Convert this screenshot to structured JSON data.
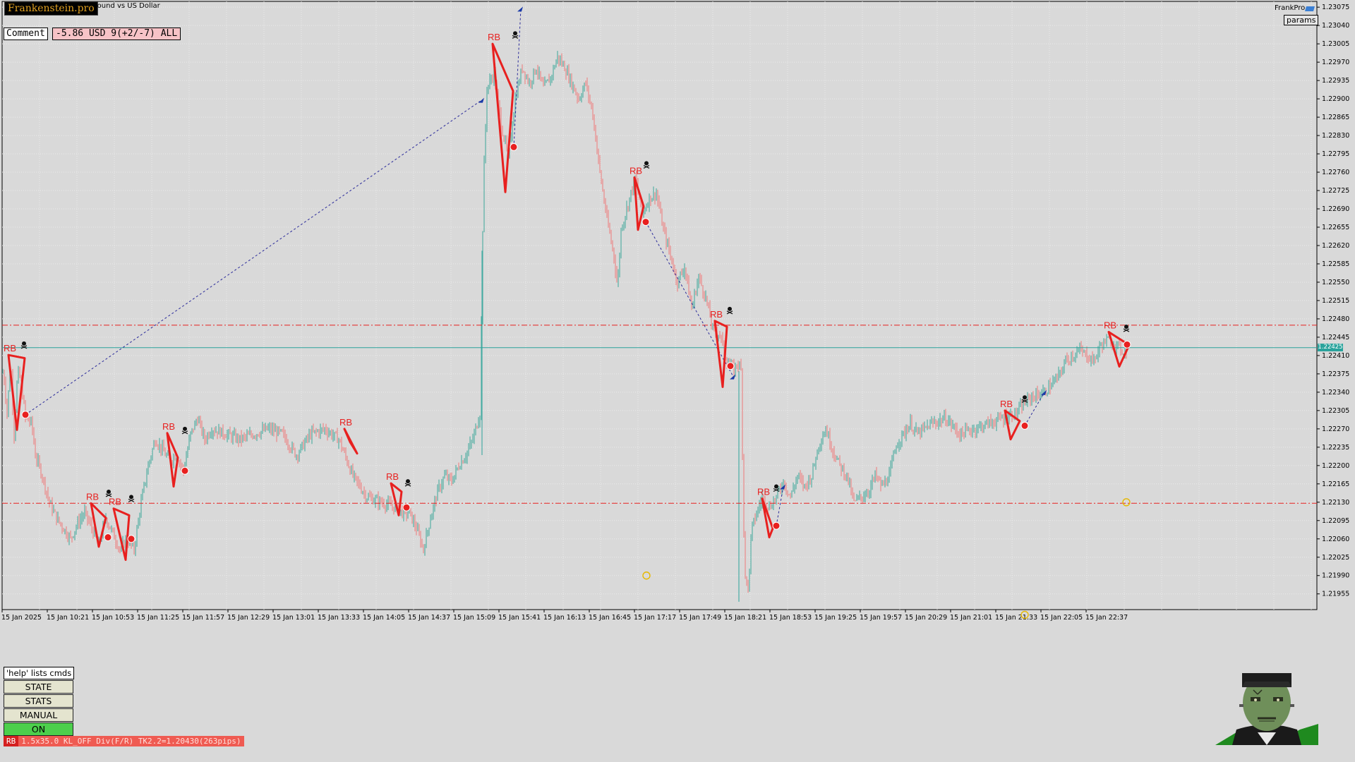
{
  "header": {
    "brand": "Frankenstein.pro",
    "symbol_description": "Pound vs US Dollar",
    "comment_label": "Comment",
    "pnl_text": "-5.86 USD 9(+2/-7) ALL",
    "frankpro_label": "FrankPro",
    "params_label": "params"
  },
  "panel": {
    "help_text": "'help' lists cmds",
    "state_label": "STATE",
    "stats_label": "STATS",
    "manual_label": "MANUAL",
    "on_label": "ON"
  },
  "status_bar": {
    "tag": "RB",
    "text": "1.5x35.0 KL_OFF Div(F/R) TK2.2=1.20430(263pips)"
  },
  "colors": {
    "background": "#d9d9d9",
    "bull_candle": "#5fb3a8",
    "bear_candle": "#e98f8f",
    "signal_red": "#e8201f",
    "bid_line": "#2aa39c",
    "level_line": "#e8201f",
    "trade_dash": "#2a2a9a",
    "on_button": "#4ccf4c"
  },
  "chart_data": {
    "type": "candlestick",
    "title": "",
    "xlabel": "",
    "ylabel": "",
    "ylim": [
      1.21925,
      1.23086
    ],
    "y_ticks": [
      "1.23075",
      "1.23040",
      "1.23005",
      "1.22970",
      "1.22935",
      "1.22900",
      "1.22865",
      "1.22830",
      "1.22795",
      "1.22760",
      "1.22725",
      "1.22690",
      "1.22655",
      "1.22620",
      "1.22585",
      "1.22550",
      "1.22515",
      "1.22480",
      "1.22445",
      "1.22410",
      "1.22375",
      "1.22340",
      "1.22305",
      "1.22270",
      "1.22235",
      "1.22200",
      "1.22165",
      "1.22130",
      "1.22095",
      "1.22060",
      "1.22025",
      "1.21990",
      "1.21955"
    ],
    "x_ticks": [
      "15 Jan 2025",
      "15 Jan 10:21",
      "15 Jan 10:53",
      "15 Jan 11:25",
      "15 Jan 11:57",
      "15 Jan 12:29",
      "15 Jan 13:01",
      "15 Jan 13:33",
      "15 Jan 14:05",
      "15 Jan 14:37",
      "15 Jan 15:09",
      "15 Jan 15:41",
      "15 Jan 16:13",
      "15 Jan 16:45",
      "15 Jan 17:17",
      "15 Jan 17:49",
      "15 Jan 18:21",
      "15 Jan 18:53",
      "15 Jan 19:25",
      "15 Jan 19:57",
      "15 Jan 20:29",
      "15 Jan 21:01",
      "15 Jan 21:33",
      "15 Jan 22:05",
      "15 Jan 22:37"
    ],
    "bid_price": "1.22425",
    "level_lines": [
      1.22468,
      1.22128
    ],
    "price_path": [
      [
        0,
        1.2237
      ],
      [
        5,
        1.2238
      ],
      [
        10,
        1.223
      ],
      [
        15,
        1.224
      ],
      [
        20,
        1.2226
      ],
      [
        25,
        1.2238
      ],
      [
        30,
        1.2236
      ],
      [
        36,
        1.2229
      ],
      [
        45,
        1.2228
      ],
      [
        50,
        1.2222
      ],
      [
        60,
        1.2218
      ],
      [
        70,
        1.2213
      ],
      [
        80,
        1.221
      ],
      [
        90,
        1.2208
      ],
      [
        100,
        1.2206
      ],
      [
        110,
        1.2209
      ],
      [
        120,
        1.2211
      ],
      [
        130,
        1.2208
      ],
      [
        140,
        1.2205
      ],
      [
        150,
        1.221
      ],
      [
        160,
        1.2207
      ],
      [
        170,
        1.2204
      ],
      [
        180,
        1.2206
      ],
      [
        190,
        1.2204
      ],
      [
        200,
        1.2213
      ],
      [
        210,
        1.222
      ],
      [
        220,
        1.2225
      ],
      [
        230,
        1.2223
      ],
      [
        240,
        1.2221
      ],
      [
        250,
        1.2222
      ],
      [
        260,
        1.2219
      ],
      [
        270,
        1.2226
      ],
      [
        280,
        1.2229
      ],
      [
        290,
        1.2225
      ],
      [
        300,
        1.2227
      ],
      [
        320,
        1.2226
      ],
      [
        340,
        1.2225
      ],
      [
        360,
        1.2226
      ],
      [
        380,
        1.2227
      ],
      [
        400,
        1.2226
      ],
      [
        420,
        1.2222
      ],
      [
        440,
        1.2226
      ],
      [
        460,
        1.2227
      ],
      [
        480,
        1.2225
      ],
      [
        500,
        1.2218
      ],
      [
        520,
        1.2214
      ],
      [
        540,
        1.2213
      ],
      [
        560,
        1.2212
      ],
      [
        570,
        1.2211
      ],
      [
        580,
        1.2211
      ],
      [
        590,
        1.2208
      ],
      [
        600,
        1.2204
      ],
      [
        610,
        1.221
      ],
      [
        620,
        1.2215
      ],
      [
        630,
        1.2218
      ],
      [
        640,
        1.2217
      ],
      [
        650,
        1.222
      ],
      [
        660,
        1.2222
      ],
      [
        670,
        1.2225
      ],
      [
        680,
        1.223
      ],
      [
        685,
        1.2274
      ],
      [
        690,
        1.2292
      ],
      [
        700,
        1.2295
      ],
      [
        710,
        1.2285
      ],
      [
        720,
        1.2279
      ],
      [
        730,
        1.229
      ],
      [
        740,
        1.2296
      ],
      [
        750,
        1.2293
      ],
      [
        760,
        1.2296
      ],
      [
        770,
        1.2292
      ],
      [
        780,
        1.2294
      ],
      [
        790,
        1.2298
      ],
      [
        800,
        1.2296
      ],
      [
        810,
        1.2293
      ],
      [
        820,
        1.229
      ],
      [
        830,
        1.2293
      ],
      [
        840,
        1.2287
      ],
      [
        850,
        1.2276
      ],
      [
        860,
        1.2267
      ],
      [
        870,
        1.226
      ],
      [
        875,
        1.2254
      ],
      [
        880,
        1.2265
      ],
      [
        890,
        1.227
      ],
      [
        900,
        1.2275
      ],
      [
        910,
        1.2268
      ],
      [
        920,
        1.2271
      ],
      [
        930,
        1.2272
      ],
      [
        940,
        1.2265
      ],
      [
        950,
        1.226
      ],
      [
        960,
        1.2255
      ],
      [
        970,
        1.2258
      ],
      [
        980,
        1.225
      ],
      [
        990,
        1.2256
      ],
      [
        1000,
        1.2252
      ],
      [
        1010,
        1.2246
      ],
      [
        1020,
        1.2245
      ],
      [
        1030,
        1.224
      ],
      [
        1040,
        1.2238
      ],
      [
        1045,
        1.224
      ],
      [
        1050,
        1.2238
      ],
      [
        1055,
        1.22
      ],
      [
        1060,
        1.2196
      ],
      [
        1065,
        1.2208
      ],
      [
        1070,
        1.221
      ],
      [
        1080,
        1.2214
      ],
      [
        1090,
        1.2212
      ],
      [
        1100,
        1.2214
      ],
      [
        1110,
        1.2217
      ],
      [
        1120,
        1.2214
      ],
      [
        1130,
        1.2218
      ],
      [
        1140,
        1.2216
      ],
      [
        1150,
        1.2218
      ],
      [
        1160,
        1.2224
      ],
      [
        1170,
        1.2227
      ],
      [
        1180,
        1.2223
      ],
      [
        1190,
        1.222
      ],
      [
        1200,
        1.2218
      ],
      [
        1210,
        1.2213
      ],
      [
        1220,
        1.2214
      ],
      [
        1230,
        1.2215
      ],
      [
        1240,
        1.2218
      ],
      [
        1250,
        1.2216
      ],
      [
        1260,
        1.2218
      ],
      [
        1270,
        1.2224
      ],
      [
        1280,
        1.2226
      ],
      [
        1290,
        1.2228
      ],
      [
        1300,
        1.2226
      ],
      [
        1320,
        1.2228
      ],
      [
        1340,
        1.2229
      ],
      [
        1360,
        1.2226
      ],
      [
        1380,
        1.2227
      ],
      [
        1400,
        1.2228
      ],
      [
        1420,
        1.2229
      ],
      [
        1440,
        1.223
      ],
      [
        1460,
        1.2233
      ],
      [
        1480,
        1.2234
      ],
      [
        1500,
        1.2237
      ],
      [
        1510,
        1.224
      ],
      [
        1520,
        1.2241
      ],
      [
        1530,
        1.2242
      ],
      [
        1540,
        1.2241
      ],
      [
        1550,
        1.224
      ],
      [
        1560,
        1.2243
      ],
      [
        1570,
        1.2244
      ],
      [
        1580,
        1.2243
      ],
      [
        1590,
        1.2242
      ]
    ],
    "signals": [
      {
        "label": "RB",
        "poly": [
          [
            12,
            1.22411
          ],
          [
            35,
            1.22405
          ],
          [
            24,
            1.22268
          ]
        ],
        "marker": [
          36,
          1.22297
        ],
        "skull": [
          34,
          1.22433
        ]
      },
      {
        "label": "RB",
        "poly": [
          [
            129,
            1.22128
          ],
          [
            150,
            1.221
          ],
          [
            140,
            1.22045
          ]
        ],
        "marker": [
          153,
          1.22063
        ],
        "skull": [
          154,
          1.2215
        ]
      },
      {
        "label": "RB",
        "poly": [
          [
            161,
            1.22118
          ],
          [
            183,
            1.22105
          ],
          [
            178,
            1.2202
          ]
        ],
        "marker": [
          186,
          1.2206
        ],
        "skull": [
          186,
          1.2214
        ]
      },
      {
        "label": "RB",
        "poly": [
          [
            237,
            1.22262
          ],
          [
            252,
            1.22215
          ],
          [
            246,
            1.2216
          ]
        ],
        "marker": [
          262,
          1.2219
        ],
        "skull": [
          262,
          1.2227
        ]
      },
      {
        "label": "RB",
        "poly": [
          [
            488,
            1.2227
          ],
          [
            506,
            1.22223
          ],
          [
            496,
            1.22245
          ]
        ],
        "marker": [
          0,
          0
        ],
        "skull": [
          0,
          0
        ]
      },
      {
        "label": "RB",
        "poly": [
          [
            554,
            1.22166
          ],
          [
            569,
            1.2215
          ],
          [
            565,
            1.22105
          ]
        ],
        "marker": [
          576,
          1.2212
        ],
        "skull": [
          578,
          1.2217
        ]
      },
      {
        "label": "RB",
        "poly": [
          [
            698,
            1.23005
          ],
          [
            727,
            1.22915
          ],
          [
            716,
            1.22722
          ]
        ],
        "marker": [
          728,
          1.22808
        ],
        "skull": [
          730,
          1.23025
        ]
      },
      {
        "label": "RB",
        "poly": [
          [
            899,
            1.2275
          ],
          [
            912,
            1.22695
          ],
          [
            904,
            1.2265
          ]
        ],
        "marker": [
          915,
          1.22665
        ],
        "skull": [
          916,
          1.22777
        ]
      },
      {
        "label": "RB",
        "poly": [
          [
            1013,
            1.22476
          ],
          [
            1030,
            1.22465
          ],
          [
            1024,
            1.2235
          ]
        ],
        "marker": [
          1035,
          1.2239
        ],
        "skull": [
          1034,
          1.22499
        ]
      },
      {
        "label": "RB",
        "poly": [
          [
            1080,
            1.22137
          ],
          [
            1095,
            1.2208
          ],
          [
            1090,
            1.22063
          ]
        ],
        "marker": [
          1100,
          1.22085
        ],
        "skull": [
          1100,
          1.2216
        ]
      },
      {
        "label": "RB",
        "poly": [
          [
            1424,
            1.22305
          ],
          [
            1445,
            1.22285
          ],
          [
            1432,
            1.2225
          ]
        ],
        "marker": [
          1452,
          1.22276
        ],
        "skull": [
          1452,
          1.2233
        ]
      },
      {
        "label": "RB",
        "poly": [
          [
            1571,
            1.22455
          ],
          [
            1600,
            1.2243
          ],
          [
            1586,
            1.22389
          ]
        ],
        "marker": [
          1597,
          1.22431
        ],
        "skull": [
          1596,
          1.22465
        ]
      }
    ],
    "trade_lines": [
      [
        [
          36,
          1.22297
        ],
        [
          683,
          1.22898
        ]
      ],
      [
        [
          728,
          1.22808
        ],
        [
          738,
          1.23072
        ]
      ],
      [
        [
          915,
          1.22665
        ],
        [
          1039,
          1.2237
        ]
      ],
      [
        [
          1100,
          1.22085
        ],
        [
          1110,
          1.2216
        ]
      ],
      [
        [
          1452,
          1.22276
        ],
        [
          1480,
          1.2234
        ]
      ]
    ]
  }
}
